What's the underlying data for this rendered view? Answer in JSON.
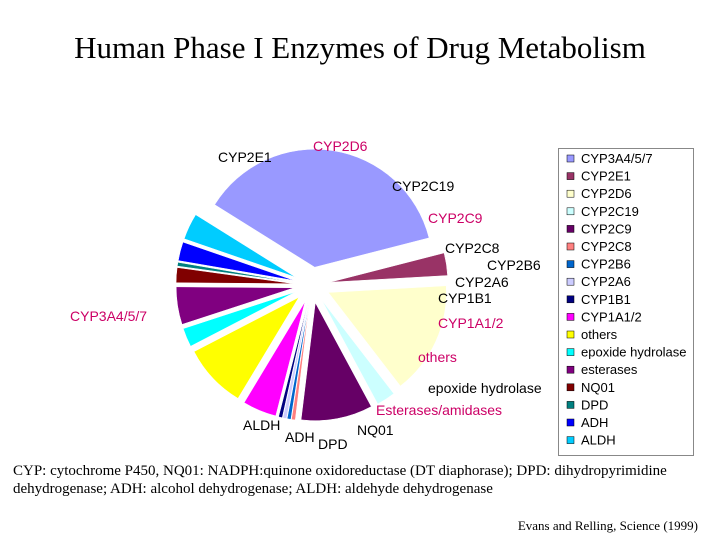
{
  "title": "Human Phase I Enzymes of Drug Metabolism",
  "chart_data": {
    "type": "pie",
    "title": "Human Phase I Enzymes of Drug Metabolism",
    "legend_position": "right",
    "slices": [
      {
        "legend": "CYP3A4/5/7",
        "label": "CYP3A4/5/7",
        "value": 36.0,
        "color": "#9999ff",
        "label_color": "#cc0066"
      },
      {
        "legend": "CYP2E1",
        "label": "CYP2E1",
        "value": 3.0,
        "color": "#993366",
        "label_color": "#000000"
      },
      {
        "legend": "CYP2D6",
        "label": "CYP2D6",
        "value": 15.0,
        "color": "#ffffcc",
        "label_color": "#cc0066"
      },
      {
        "legend": "CYP2C19",
        "label": "CYP2C19",
        "value": 2.5,
        "color": "#ccffff",
        "label_color": "#000000"
      },
      {
        "legend": "CYP2C9",
        "label": "CYP2C9",
        "value": 9.5,
        "color": "#660066",
        "label_color": "#cc0066"
      },
      {
        "legend": "CYP2C8",
        "label": "CYP2C8",
        "value": 0.5,
        "color": "#ff8080",
        "label_color": "#000000"
      },
      {
        "legend": "CYP2B6",
        "label": "CYP2B6",
        "value": 0.5,
        "color": "#0066cc",
        "label_color": "#000000"
      },
      {
        "legend": "CYP2A6",
        "label": "CYP2A6",
        "value": 0.5,
        "color": "#ccccff",
        "label_color": "#000000"
      },
      {
        "legend": "CYP1B1",
        "label": "CYP1B1",
        "value": 0.5,
        "color": "#000080",
        "label_color": "#000000"
      },
      {
        "legend": "CYP1A1/2",
        "label": "CYP1A1/2",
        "value": 4.5,
        "color": "#ff00ff",
        "label_color": "#cc0066"
      },
      {
        "legend": "others",
        "label": "others",
        "value": 8.5,
        "color": "#ffff00",
        "label_color": "#cc0066"
      },
      {
        "legend": "epoxide hydrolase",
        "label": "epoxide hydrolase",
        "value": 2.5,
        "color": "#00ffff",
        "label_color": "#000000"
      },
      {
        "legend": "esterases",
        "label": "Esterases/amidases",
        "value": 5.0,
        "color": "#800080",
        "label_color": "#cc0066"
      },
      {
        "legend": "NQ01",
        "label": "NQ01",
        "value": 2.0,
        "color": "#800000",
        "label_color": "#000000"
      },
      {
        "legend": "DPD",
        "label": "DPD",
        "value": 0.5,
        "color": "#008080",
        "label_color": "#000000"
      },
      {
        "legend": "ADH",
        "label": "ADH",
        "value": 2.5,
        "color": "#0000ff",
        "label_color": "#000000"
      },
      {
        "legend": "ALDH",
        "label": "ALDH",
        "value": 3.5,
        "color": "#00ccff",
        "label_color": "#000000"
      }
    ]
  },
  "footnote": "CYP: cytochrome P450, NQ01: NADPH:quinone oxidoreductase (DT diaphorase); DPD: dihydropyrimidine dehydrogenase; ADH: alcohol dehydrogenase; ALDH: aldehyde dehydrogenase",
  "citation": "Evans and Relling, Science  (1999)"
}
